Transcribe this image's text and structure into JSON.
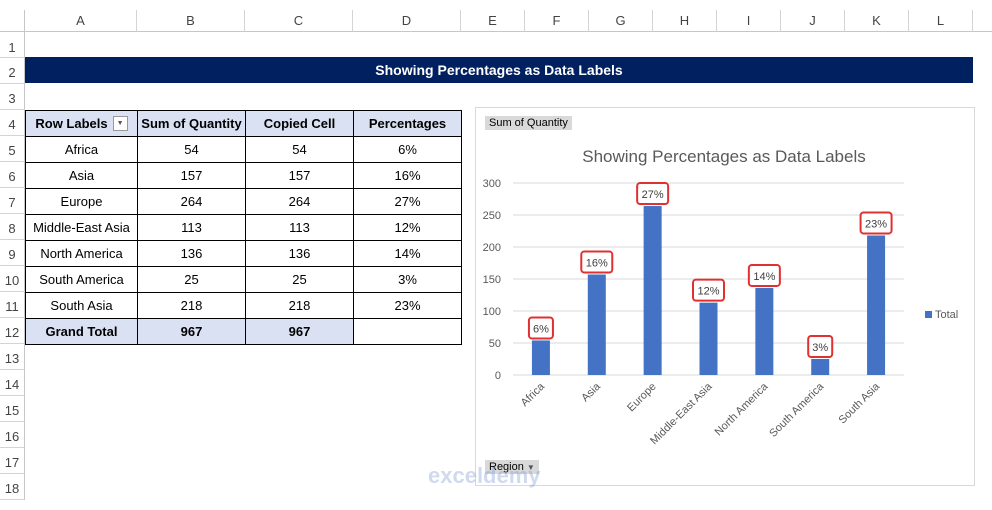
{
  "columns": [
    "A",
    "B",
    "C",
    "D",
    "E",
    "F",
    "G",
    "H",
    "I",
    "J",
    "K",
    "L"
  ],
  "rows": [
    "1",
    "2",
    "3",
    "4",
    "5",
    "6",
    "7",
    "8",
    "9",
    "10",
    "11",
    "12",
    "13",
    "14",
    "15",
    "16",
    "17",
    "18"
  ],
  "title": "Showing Percentages as Data Labels",
  "table": {
    "headers": [
      "Row Labels",
      "Sum of Quantity",
      "Copied Cell",
      "Percentages"
    ],
    "rows": [
      [
        "Africa",
        "54",
        "54",
        "6%"
      ],
      [
        "Asia",
        "157",
        "157",
        "16%"
      ],
      [
        "Europe",
        "264",
        "264",
        "27%"
      ],
      [
        "Middle-East Asia",
        "113",
        "113",
        "12%"
      ],
      [
        "North America",
        "136",
        "136",
        "14%"
      ],
      [
        "South America",
        "25",
        "25",
        "3%"
      ],
      [
        "South Asia",
        "218",
        "218",
        "23%"
      ]
    ],
    "total": [
      "Grand Total",
      "967",
      "967",
      ""
    ]
  },
  "chart_field_button": "Sum of Quantity",
  "axis_field_button": "Region",
  "watermark": "exceldemy",
  "chart_data": {
    "type": "bar",
    "title": "Showing Percentages as Data Labels",
    "categories": [
      "Africa",
      "Asia",
      "Europe",
      "Middle-East Asia",
      "North America",
      "South America",
      "South Asia"
    ],
    "values": [
      54,
      157,
      264,
      113,
      136,
      25,
      218
    ],
    "labels": [
      "6%",
      "16%",
      "27%",
      "12%",
      "14%",
      "3%",
      "23%"
    ],
    "yticks": [
      "0",
      "50",
      "100",
      "150",
      "200",
      "250",
      "300"
    ],
    "ylim": [
      0,
      300
    ],
    "legend": "Total",
    "legend_position": "right",
    "bar_color": "#4472c4",
    "label_border_color": "#e03030"
  }
}
